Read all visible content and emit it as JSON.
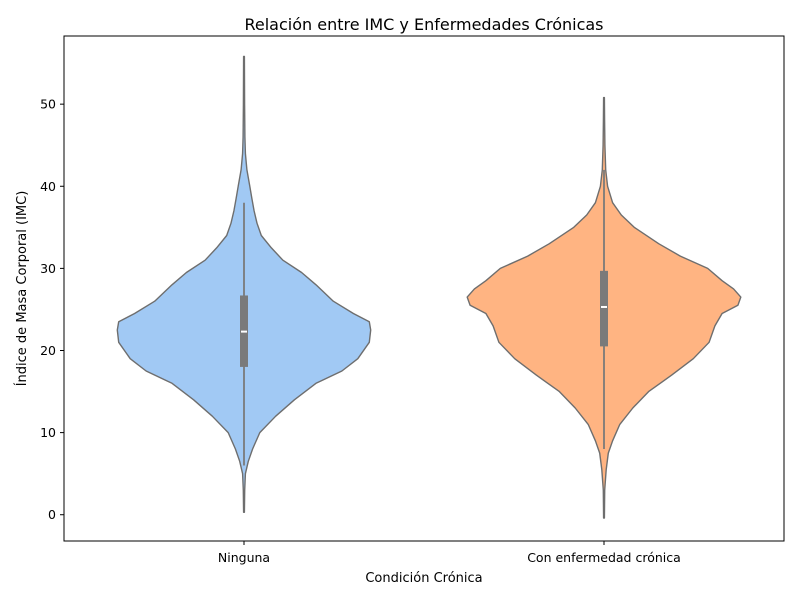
{
  "chart_data": {
    "type": "violin",
    "title": "Relación entre IMC y Enfermedades Crónicas",
    "xlabel": "Condición Crónica",
    "ylabel": "Índice de Masa Corporal (IMC)",
    "categories": [
      "Ninguna",
      "Con enfermedad crónica"
    ],
    "ylim": [
      -3.2,
      58.3
    ],
    "yticks": [
      0,
      10,
      20,
      30,
      40,
      50
    ],
    "colors": [
      "#a1c9f4",
      "#ffb482"
    ],
    "grid": false,
    "violins": [
      {
        "category": "Ninguna",
        "color": "#a1c9f4",
        "min": 0.3,
        "max": 55.8,
        "q1": 18.0,
        "median": 22.3,
        "q3": 26.7,
        "whisker_low": 6.0,
        "whisker_high": 38.0,
        "density": [
          [
            0.3,
            0.003
          ],
          [
            3,
            0.005
          ],
          [
            5,
            0.01
          ],
          [
            6.5,
            0.03
          ],
          [
            8,
            0.06
          ],
          [
            10,
            0.11
          ],
          [
            12,
            0.22
          ],
          [
            14,
            0.35
          ],
          [
            16,
            0.5
          ],
          [
            17.5,
            0.68
          ],
          [
            19,
            0.79
          ],
          [
            21,
            0.87
          ],
          [
            22.5,
            0.88
          ],
          [
            23.5,
            0.87
          ],
          [
            24.5,
            0.76
          ],
          [
            26,
            0.62
          ],
          [
            28,
            0.5
          ],
          [
            29.5,
            0.4
          ],
          [
            31,
            0.27
          ],
          [
            32.5,
            0.19
          ],
          [
            34,
            0.12
          ],
          [
            35.5,
            0.09
          ],
          [
            37,
            0.07
          ],
          [
            38.5,
            0.055
          ],
          [
            40,
            0.04
          ],
          [
            42,
            0.02
          ],
          [
            44,
            0.01
          ],
          [
            46,
            0.006
          ],
          [
            50,
            0.004
          ],
          [
            55.8,
            0.003
          ]
        ]
      },
      {
        "category": "Con enfermedad crónica",
        "color": "#ffb482",
        "min": -0.4,
        "max": 50.8,
        "q1": 20.5,
        "median": 25.3,
        "q3": 29.7,
        "whisker_low": 8.0,
        "whisker_high": 42.0,
        "density": [
          [
            -0.4,
            0.003
          ],
          [
            3,
            0.005
          ],
          [
            5.5,
            0.015
          ],
          [
            7.5,
            0.03
          ],
          [
            9,
            0.06
          ],
          [
            11,
            0.11
          ],
          [
            13,
            0.2
          ],
          [
            15,
            0.31
          ],
          [
            17,
            0.47
          ],
          [
            19,
            0.62
          ],
          [
            21,
            0.73
          ],
          [
            23,
            0.77
          ],
          [
            24.5,
            0.82
          ],
          [
            25.5,
            0.93
          ],
          [
            26.5,
            0.95
          ],
          [
            27.5,
            0.9
          ],
          [
            28.5,
            0.82
          ],
          [
            30,
            0.72
          ],
          [
            31.5,
            0.53
          ],
          [
            33,
            0.38
          ],
          [
            35,
            0.21
          ],
          [
            36.5,
            0.12
          ],
          [
            38,
            0.06
          ],
          [
            40,
            0.025
          ],
          [
            42,
            0.012
          ],
          [
            45,
            0.006
          ],
          [
            48,
            0.004
          ],
          [
            50.8,
            0.003
          ]
        ]
      }
    ]
  }
}
